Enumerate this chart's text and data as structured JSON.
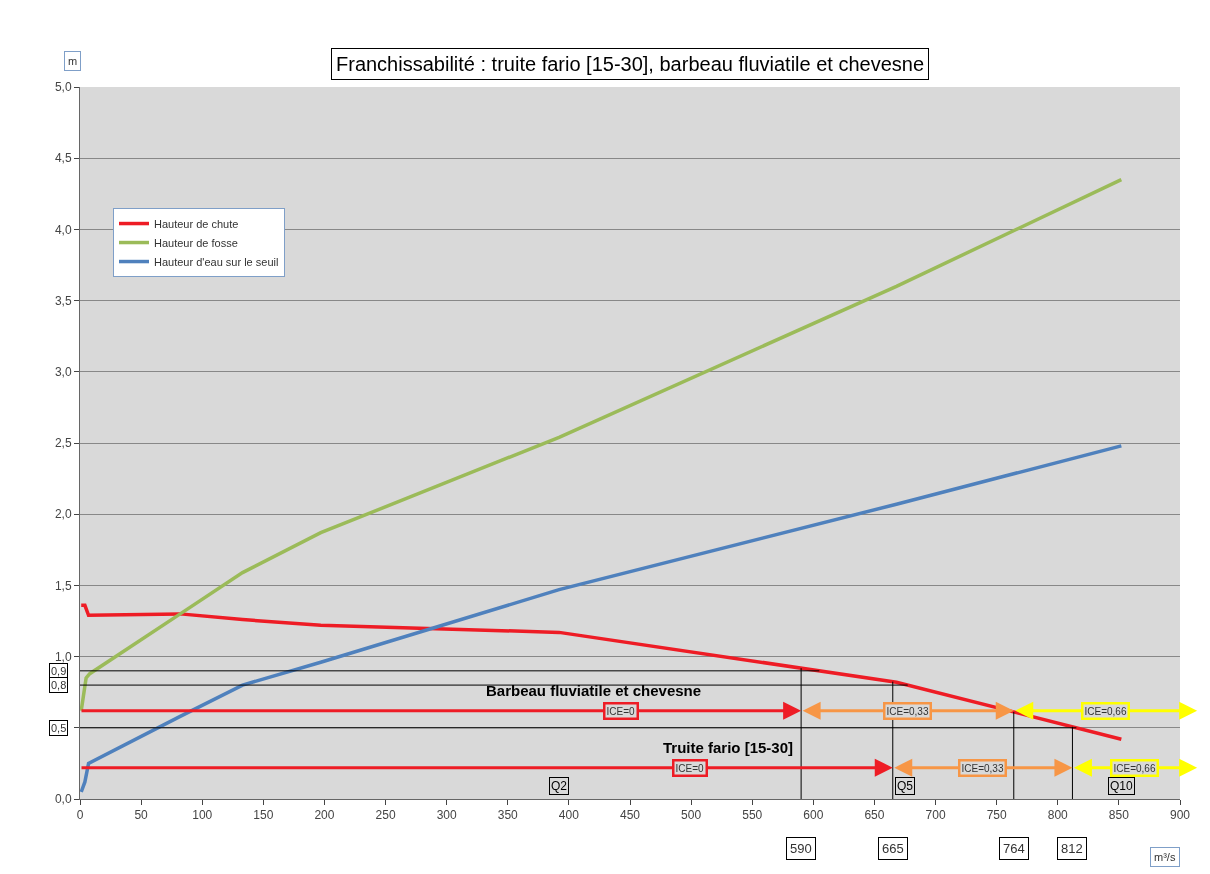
{
  "chart_data": {
    "type": "line",
    "title": "Franchissabilité : truite fario [15-30], barbeau fluviatile et chevesne",
    "xlabel": "m³/s",
    "ylabel": "m",
    "xlim": [
      0,
      900
    ],
    "xticks": [
      0,
      50,
      100,
      150,
      200,
      250,
      300,
      350,
      400,
      450,
      500,
      550,
      600,
      650,
      700,
      750,
      800,
      850,
      900
    ],
    "ylim": [
      0,
      5
    ],
    "yticks": [
      {
        "value": 0,
        "label": "0,0"
      },
      {
        "value": 0.5,
        "label": null
      },
      {
        "value": 1,
        "label": "1,0"
      },
      {
        "value": 1.5,
        "label": "1,5"
      },
      {
        "value": 2,
        "label": "2,0"
      },
      {
        "value": 2.5,
        "label": "2,5"
      },
      {
        "value": 3,
        "label": "3,0"
      },
      {
        "value": 3.5,
        "label": "3,5"
      },
      {
        "value": 4,
        "label": "4,0"
      },
      {
        "value": 4.5,
        "label": "4,5"
      },
      {
        "value": 5,
        "label": "5,0"
      }
    ],
    "grid": "y",
    "legend": "top left",
    "series": [
      {
        "name": "Hauteur de chute",
        "color": "#ee1c25",
        "x": [
          1,
          4,
          7,
          82,
          133,
          197,
          392,
          668,
          852
        ],
        "values": [
          1.36,
          1.36,
          1.29,
          1.3,
          1.26,
          1.22,
          1.17,
          0.82,
          0.42
        ]
      },
      {
        "name": "Hauteur de fosse",
        "color": "#9bbb59",
        "x": [
          1,
          5,
          8,
          82,
          133,
          197,
          392,
          668,
          852
        ],
        "values": [
          0.62,
          0.85,
          0.88,
          1.3,
          1.59,
          1.87,
          2.54,
          3.6,
          4.35
        ]
      },
      {
        "name": "Hauteur d'eau sur le seuil",
        "color": "#4f81bd",
        "x": [
          1,
          4,
          7,
          82,
          133,
          197,
          392,
          668,
          852
        ],
        "values": [
          0.05,
          0.12,
          0.25,
          0.58,
          0.8,
          0.96,
          1.47,
          2.07,
          2.48
        ]
      }
    ],
    "ref_lines": [
      {
        "axis": "y",
        "value": 0.9,
        "label": "0,9"
      },
      {
        "axis": "y",
        "value": 0.8,
        "label": "0,8"
      },
      {
        "axis": "y",
        "value": 0.5,
        "label": "0,5"
      },
      {
        "axis": "y",
        "value": 0.62,
        "color": "#ee1c25"
      },
      {
        "axis": "y",
        "value": 0.22,
        "color": "#ee1c25"
      },
      {
        "axis": "x",
        "value": 590,
        "label": "590"
      },
      {
        "axis": "x",
        "value": 764,
        "label": "764"
      },
      {
        "axis": "x",
        "value": 665,
        "label": "665"
      },
      {
        "axis": "x",
        "value": 812,
        "label": "812"
      }
    ],
    "annotations": [
      "Barbeau fluviatile et chevesne",
      "ICE=0",
      "ICE=0,33",
      "ICE=0,66",
      "Truite fario [15-30]",
      "ICE=0",
      "ICE=0,33",
      "ICE=0,66",
      {
        "text": "Q2",
        "x": 392,
        "y": 0.09
      },
      {
        "text": "Q5",
        "x": 675,
        "y": 0.09
      },
      {
        "text": "Q10",
        "x": 852,
        "y": 0.09
      }
    ]
  }
}
